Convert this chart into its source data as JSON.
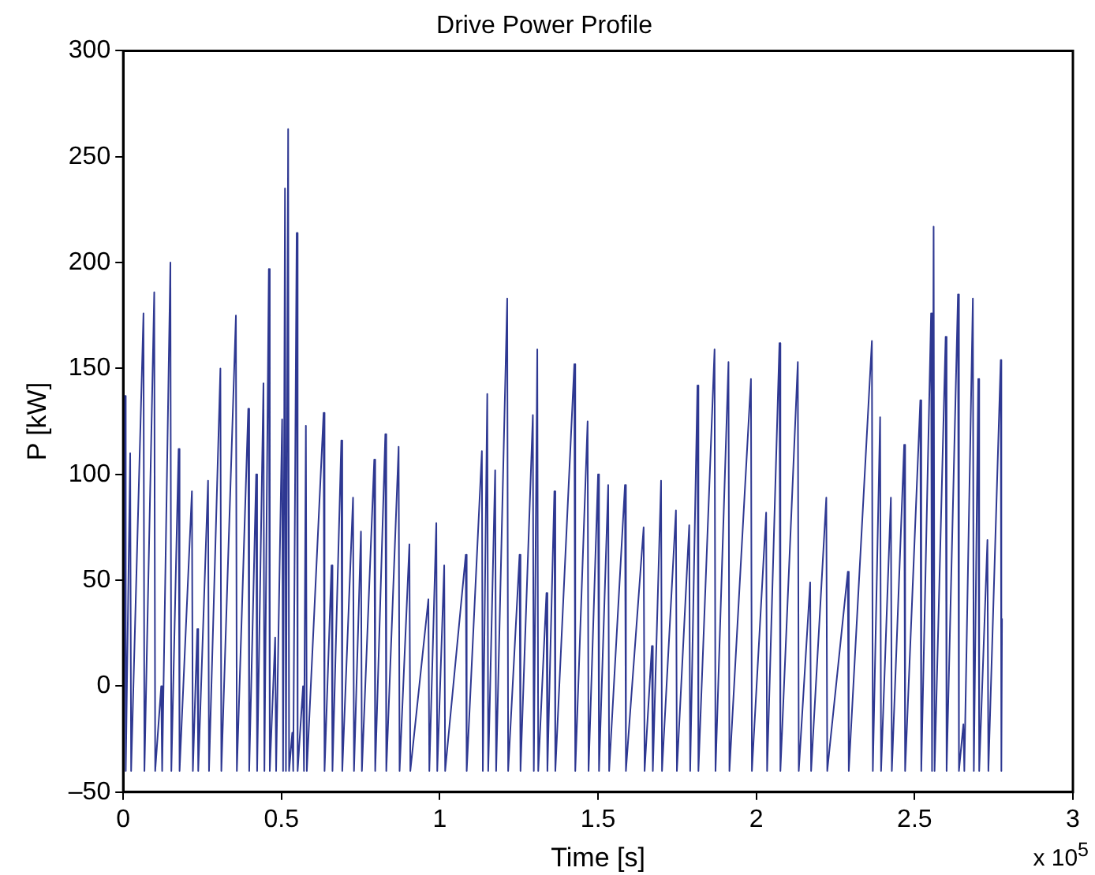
{
  "chart_data": {
    "type": "line",
    "title": "Drive Power Profile",
    "xlabel": "Time [s]",
    "ylabel": "P [kW]",
    "annotations": [
      "x 10$^{5}$"
    ],
    "x": [
      0,
      0.005,
      0.008,
      0.022,
      0.025,
      0.064,
      0.067,
      0.098,
      0.101,
      0.12,
      0.123,
      0.149,
      0.152,
      0.175,
      0.178,
      0.217,
      0.22,
      0.234,
      0.237,
      0.268,
      0.271,
      0.307,
      0.31,
      0.356,
      0.359,
      0.395,
      0.398,
      0.42,
      0.423,
      0.443,
      0.446,
      0.46,
      0.463,
      0.48,
      0.483,
      0.502,
      0.505,
      0.511,
      0.514,
      0.521,
      0.524,
      0.534,
      0.537,
      0.548,
      0.551,
      0.568,
      0.571,
      0.577,
      0.58,
      0.633,
      0.636,
      0.658,
      0.661,
      0.689,
      0.692,
      0.726,
      0.729,
      0.751,
      0.754,
      0.793,
      0.796,
      0.828,
      0.831,
      0.87,
      0.873,
      0.904,
      0.907,
      0.964,
      0.967,
      0.989,
      0.992,
      1.014,
      1.017,
      1.082,
      1.085,
      1.133,
      1.136,
      1.15,
      1.153,
      1.175,
      1.178,
      1.213,
      1.216,
      1.252,
      1.255,
      1.294,
      1.297,
      1.308,
      1.311,
      1.337,
      1.34,
      1.362,
      1.365,
      1.425,
      1.428,
      1.467,
      1.47,
      1.5,
      1.503,
      1.532,
      1.535,
      1.585,
      1.588,
      1.644,
      1.647,
      1.67,
      1.673,
      1.699,
      1.702,
      1.746,
      1.749,
      1.788,
      1.791,
      1.814,
      1.817,
      1.868,
      1.871,
      1.912,
      1.915,
      1.983,
      1.986,
      2.031,
      2.034,
      2.073,
      2.076,
      2.131,
      2.134,
      2.17,
      2.173,
      2.221,
      2.224,
      2.289,
      2.292,
      2.365,
      2.368,
      2.391,
      2.394,
      2.425,
      2.428,
      2.467,
      2.47,
      2.518,
      2.521,
      2.552,
      2.555,
      2.56,
      2.563,
      2.598,
      2.601,
      2.637,
      2.64,
      2.654,
      2.657,
      2.684,
      2.687,
      2.701,
      2.704,
      2.73,
      2.733,
      2.772,
      2.774,
      2.776
    ],
    "series": [
      {
        "color": "#2e3892",
        "values": [
          -40,
          137,
          -40,
          110,
          -40,
          176,
          -40,
          186,
          -40,
          0,
          -40,
          200,
          -40,
          112,
          -40,
          92,
          -40,
          27,
          -40,
          97,
          -40,
          150,
          -40,
          175,
          -40,
          131,
          -40,
          100,
          -40,
          143,
          -40,
          197,
          -40,
          23,
          -40,
          126,
          -40,
          235,
          -40,
          263,
          -40,
          -22,
          -40,
          214,
          -40,
          0,
          -40,
          123,
          -40,
          129,
          -40,
          57,
          -40,
          116,
          -40,
          89,
          -40,
          73,
          -40,
          107,
          -40,
          119,
          -40,
          113,
          -40,
          67,
          -40,
          41,
          -40,
          77,
          -40,
          57,
          -40,
          62,
          -40,
          111,
          -40,
          138,
          -40,
          102,
          -40,
          183,
          -40,
          62,
          -40,
          128,
          -40,
          159,
          -40,
          44,
          -40,
          92,
          -40,
          152,
          -40,
          125,
          -40,
          100,
          -40,
          95,
          -40,
          95,
          -40,
          75,
          -40,
          19,
          -40,
          97,
          -40,
          83,
          -40,
          76,
          -40,
          142,
          -40,
          159,
          -40,
          153,
          -40,
          145,
          -40,
          82,
          -40,
          162,
          -40,
          153,
          -40,
          49,
          -40,
          89,
          -40,
          54,
          -40,
          163,
          -40,
          127,
          -40,
          89,
          -40,
          114,
          -40,
          135,
          -40,
          176,
          -40,
          217,
          -40,
          165,
          -40,
          185,
          -40,
          -18,
          -40,
          183,
          -40,
          145,
          -40,
          69,
          -40,
          154,
          -40,
          32
        ]
      }
    ],
    "xlim": [
      0,
      3
    ],
    "xticks": [
      0,
      0.5,
      1,
      1.5,
      2,
      2.5,
      3
    ],
    "ylim": [
      -50,
      300
    ],
    "yticks": [
      {
        "value": -50,
        "label": "–50"
      },
      0,
      50,
      100,
      150,
      200,
      250,
      300
    ],
    "grid": false,
    "legend": false,
    "marker": "none",
    "line_style": "solid"
  }
}
